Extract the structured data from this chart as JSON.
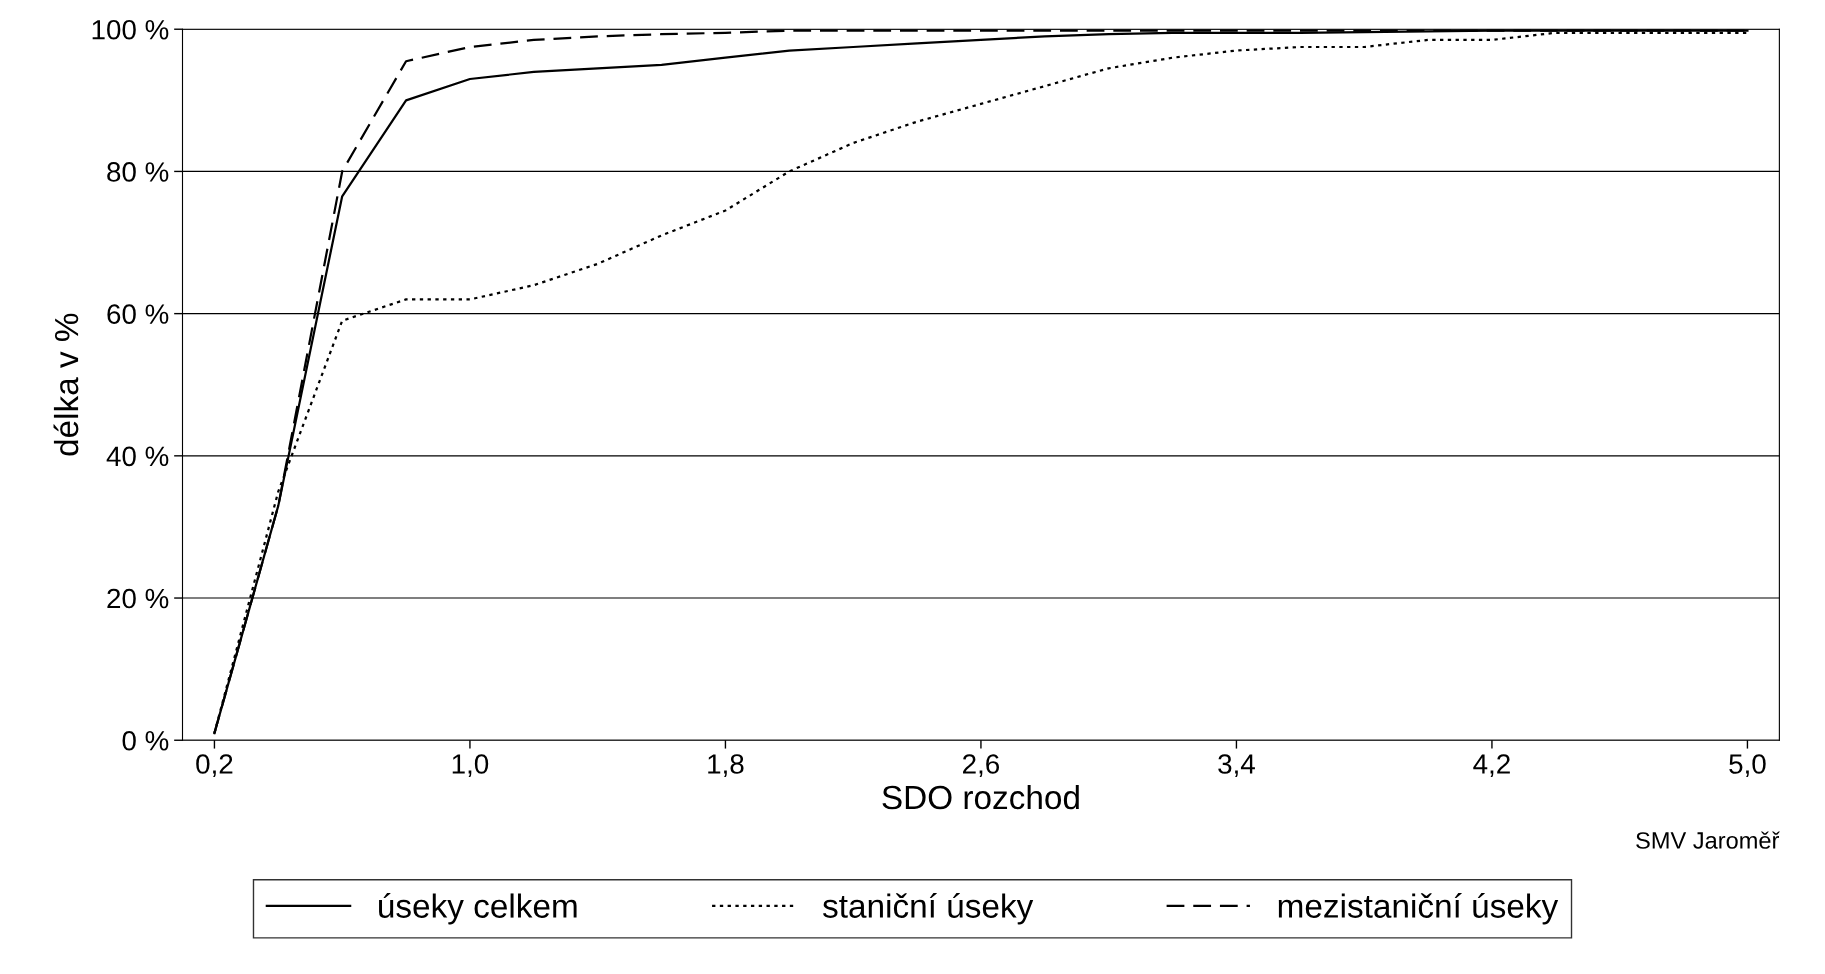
{
  "chart_data": {
    "type": "line",
    "xlabel": "SDO rozchod",
    "ylabel": "délka v %",
    "x": [
      0.2,
      0.4,
      0.6,
      0.8,
      1.0,
      1.2,
      1.4,
      1.6,
      1.8,
      2.0,
      2.2,
      2.4,
      2.6,
      2.8,
      3.0,
      3.2,
      3.4,
      3.6,
      3.8,
      4.0,
      4.2,
      4.4,
      4.6,
      4.8,
      5.0
    ],
    "series": [
      {
        "name": "úseky celkem",
        "color": "#000000",
        "line_style": "solid",
        "values": [
          1,
          33,
          76.5,
          90,
          93,
          94,
          94.5,
          95,
          96,
          97,
          97.5,
          98,
          98.5,
          99,
          99.3,
          99.5,
          99.5,
          99.5,
          99.6,
          99.7,
          99.8,
          99.8,
          99.8,
          99.8,
          99.8
        ]
      },
      {
        "name": "staniční úseky",
        "color": "#000000",
        "line_style": "dotted",
        "values": [
          1,
          35,
          59,
          62,
          62,
          64,
          67,
          71,
          74.5,
          80,
          84,
          87,
          89.5,
          92,
          94.5,
          96,
          97,
          97.5,
          97.5,
          98.5,
          98.5,
          99.5,
          99.5,
          99.5,
          99.5
        ]
      },
      {
        "name": "mezistaniční úseky",
        "color": "#000000",
        "line_style": "dashed",
        "values": [
          1,
          33,
          80,
          95.5,
          97.5,
          98.5,
          99,
          99.3,
          99.5,
          99.8,
          99.8,
          99.8,
          99.8,
          99.8,
          99.8,
          99.8,
          99.8,
          99.8,
          99.8,
          99.8,
          99.8,
          99.8,
          99.8,
          99.8,
          99.8
        ]
      }
    ],
    "xlim": [
      0.1,
      5.1
    ],
    "xticks": [
      {
        "value": 0.2,
        "label": "0,2"
      },
      {
        "value": 1.0,
        "label": "1,0"
      },
      {
        "value": 1.8,
        "label": "1,8"
      },
      {
        "value": 2.6,
        "label": "2,6"
      },
      {
        "value": 3.4,
        "label": "3,4"
      },
      {
        "value": 4.2,
        "label": "4,2"
      },
      {
        "value": 5.0,
        "label": "5,0"
      }
    ],
    "ylim": [
      0,
      100
    ],
    "yticks": [
      {
        "value": 0,
        "label": "0 %"
      },
      {
        "value": 20,
        "label": "20 %"
      },
      {
        "value": 40,
        "label": "40 %"
      },
      {
        "value": 60,
        "label": "60 %"
      },
      {
        "value": 80,
        "label": "80 %"
      },
      {
        "value": 100,
        "label": "100 %"
      }
    ],
    "grid": "y",
    "legend": "bottom",
    "marker": "none",
    "annotations": [
      "SMV Jaroměř"
    ]
  }
}
